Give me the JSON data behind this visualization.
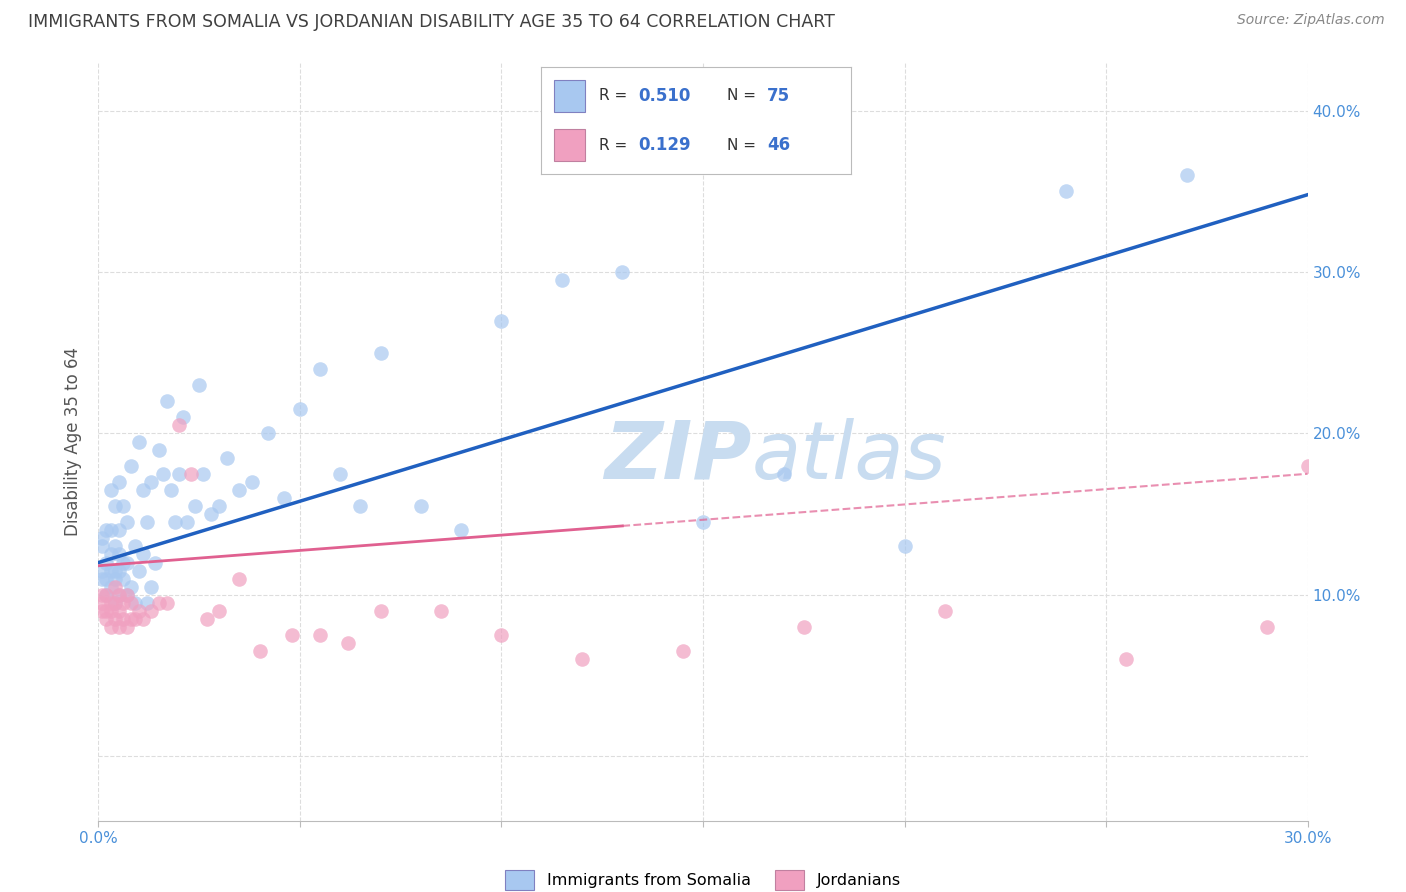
{
  "title": "IMMIGRANTS FROM SOMALIA VS JORDANIAN DISABILITY AGE 35 TO 64 CORRELATION CHART",
  "source": "Source: ZipAtlas.com",
  "ylabel": "Disability Age 35 to 64",
  "xlim": [
    0.0,
    0.3
  ],
  "ylim": [
    -0.04,
    0.43
  ],
  "xticks": [
    0.0,
    0.05,
    0.1,
    0.15,
    0.2,
    0.25,
    0.3
  ],
  "yticks": [
    0.0,
    0.1,
    0.2,
    0.3,
    0.4
  ],
  "somalia_R": "0.510",
  "somalia_N": "75",
  "jordan_R": "0.129",
  "jordan_N": "46",
  "blue_color": "#A8C8F0",
  "blue_line_color": "#2060C0",
  "pink_color": "#F0A0C0",
  "pink_line_color": "#E06090",
  "tick_label_color": "#4A90D9",
  "watermark_color": "#C8DCF0",
  "title_color": "#404040",
  "axis_label_color": "#555555",
  "grid_color": "#DDDDDD",
  "legend_text_color": "#3A70CC",
  "somalia_x": [
    0.001,
    0.001,
    0.001,
    0.001,
    0.002,
    0.002,
    0.002,
    0.002,
    0.003,
    0.003,
    0.003,
    0.003,
    0.003,
    0.004,
    0.004,
    0.004,
    0.004,
    0.004,
    0.005,
    0.005,
    0.005,
    0.005,
    0.005,
    0.006,
    0.006,
    0.006,
    0.007,
    0.007,
    0.007,
    0.008,
    0.008,
    0.009,
    0.009,
    0.01,
    0.01,
    0.011,
    0.011,
    0.012,
    0.012,
    0.013,
    0.013,
    0.014,
    0.015,
    0.016,
    0.017,
    0.018,
    0.019,
    0.02,
    0.021,
    0.022,
    0.024,
    0.025,
    0.026,
    0.028,
    0.03,
    0.032,
    0.035,
    0.038,
    0.042,
    0.046,
    0.05,
    0.055,
    0.06,
    0.065,
    0.07,
    0.08,
    0.09,
    0.1,
    0.115,
    0.13,
    0.15,
    0.17,
    0.2,
    0.24,
    0.27
  ],
  "somalia_y": [
    0.11,
    0.115,
    0.13,
    0.135,
    0.1,
    0.11,
    0.12,
    0.14,
    0.105,
    0.115,
    0.125,
    0.14,
    0.165,
    0.095,
    0.11,
    0.115,
    0.13,
    0.155,
    0.1,
    0.115,
    0.125,
    0.14,
    0.17,
    0.11,
    0.12,
    0.155,
    0.1,
    0.12,
    0.145,
    0.105,
    0.18,
    0.095,
    0.13,
    0.115,
    0.195,
    0.125,
    0.165,
    0.095,
    0.145,
    0.105,
    0.17,
    0.12,
    0.19,
    0.175,
    0.22,
    0.165,
    0.145,
    0.175,
    0.21,
    0.145,
    0.155,
    0.23,
    0.175,
    0.15,
    0.155,
    0.185,
    0.165,
    0.17,
    0.2,
    0.16,
    0.215,
    0.24,
    0.175,
    0.155,
    0.25,
    0.155,
    0.14,
    0.27,
    0.295,
    0.3,
    0.145,
    0.175,
    0.13,
    0.35,
    0.36
  ],
  "jordan_x": [
    0.001,
    0.001,
    0.001,
    0.002,
    0.002,
    0.002,
    0.003,
    0.003,
    0.003,
    0.004,
    0.004,
    0.004,
    0.005,
    0.005,
    0.005,
    0.006,
    0.006,
    0.007,
    0.007,
    0.008,
    0.008,
    0.009,
    0.01,
    0.011,
    0.013,
    0.015,
    0.017,
    0.02,
    0.023,
    0.027,
    0.03,
    0.035,
    0.04,
    0.048,
    0.055,
    0.062,
    0.07,
    0.085,
    0.1,
    0.12,
    0.145,
    0.175,
    0.21,
    0.255,
    0.29,
    0.3
  ],
  "jordan_y": [
    0.09,
    0.095,
    0.1,
    0.085,
    0.09,
    0.1,
    0.08,
    0.09,
    0.095,
    0.085,
    0.095,
    0.105,
    0.08,
    0.09,
    0.1,
    0.085,
    0.095,
    0.08,
    0.1,
    0.085,
    0.095,
    0.085,
    0.09,
    0.085,
    0.09,
    0.095,
    0.095,
    0.205,
    0.175,
    0.085,
    0.09,
    0.11,
    0.065,
    0.075,
    0.075,
    0.07,
    0.09,
    0.09,
    0.075,
    0.06,
    0.065,
    0.08,
    0.09,
    0.06,
    0.08,
    0.18
  ],
  "soma_line_x0": 0.0,
  "soma_line_y0": 0.12,
  "soma_line_x1": 0.3,
  "soma_line_y1": 0.348,
  "jordan_line_x0": 0.0,
  "jordan_line_y0": 0.118,
  "jordan_line_x1": 0.3,
  "jordan_line_y1": 0.175
}
